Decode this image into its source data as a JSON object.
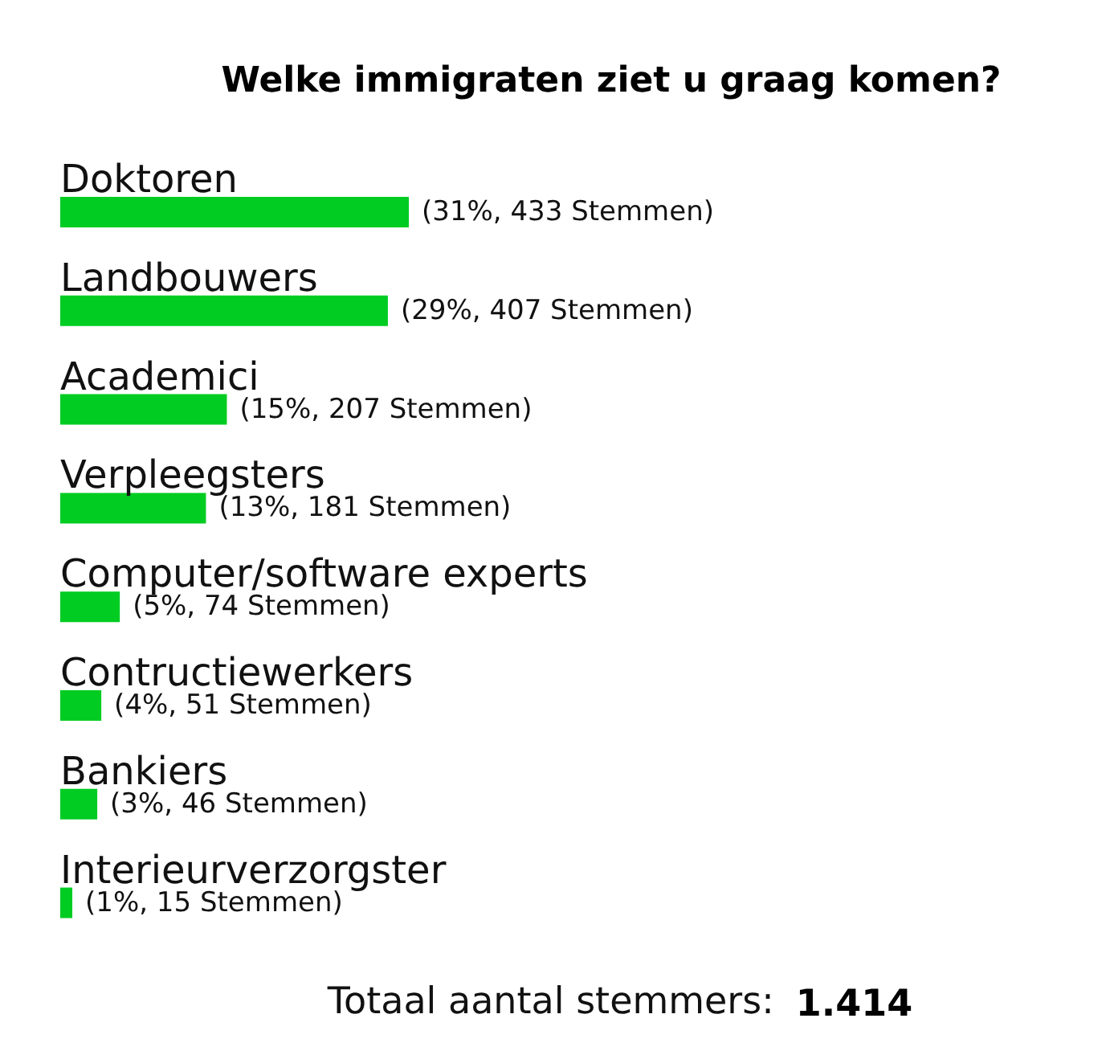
{
  "chart_data": {
    "type": "bar",
    "orientation": "horizontal",
    "title": "Welke immigraten ziet u graag komen?",
    "categories": [
      "Doktoren",
      "Landbouwers",
      "Academici",
      "Verpleegsters",
      "Computer/software experts",
      "Contructiewerkers",
      "Bankiers",
      "Interieurverzorgster"
    ],
    "values": [
      433,
      407,
      207,
      181,
      74,
      51,
      46,
      15
    ],
    "value_labels": [
      "(31%, 433 Stemmen)",
      "(29%, 407 Stemmen)",
      "(15%, 207 Stemmen)",
      "(13%, 181 Stemmen)",
      "(5%, 74 Stemmen)",
      "(4%, 51 Stemmen)",
      "(3%, 46 Stemmen)",
      "(1%, 15 Stemmen)"
    ],
    "color": "#00cc22",
    "annotations": [
      "Totaal aantal stemmers: 1.414"
    ]
  }
}
